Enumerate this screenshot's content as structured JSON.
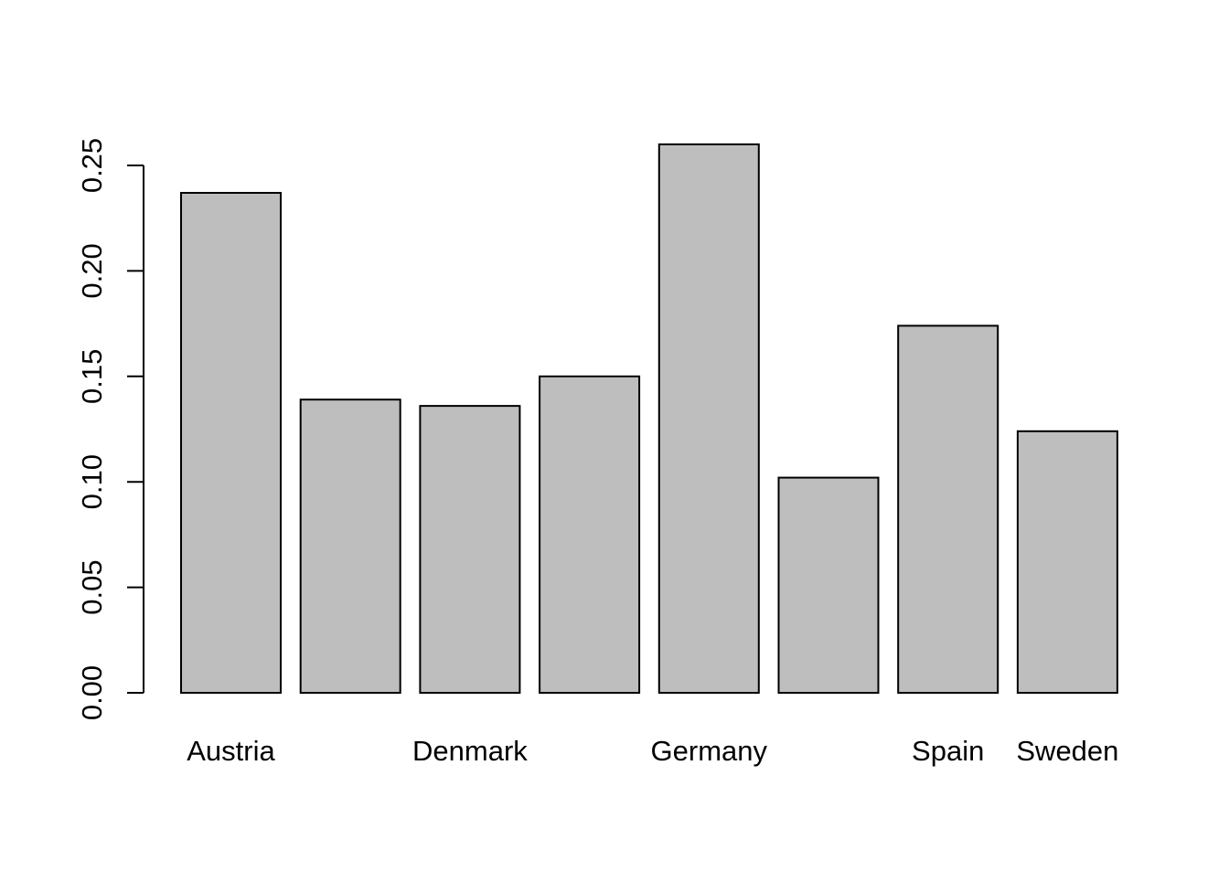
{
  "chart_data": {
    "type": "bar",
    "title": "",
    "xlabel": "",
    "ylabel": "",
    "categories": [
      "Austria",
      "",
      "Denmark",
      "",
      "Germany",
      "",
      "Spain",
      "Sweden"
    ],
    "values": [
      0.237,
      0.139,
      0.136,
      0.15,
      0.26,
      0.102,
      0.174,
      0.124
    ],
    "ylim": [
      0,
      0.26
    ],
    "yticks": [
      "0.00",
      "0.05",
      "0.10",
      "0.15",
      "0.20",
      "0.25"
    ],
    "ytick_values": [
      0,
      0.05,
      0.1,
      0.15,
      0.2,
      0.25
    ],
    "grid": false,
    "bar_fill": "#bebebe",
    "bar_stroke": "#000000"
  }
}
